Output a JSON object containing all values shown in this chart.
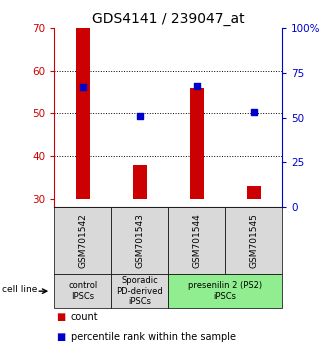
{
  "title": "GDS4141 / 239047_at",
  "samples": [
    "GSM701542",
    "GSM701543",
    "GSM701544",
    "GSM701545"
  ],
  "bar_values": [
    70,
    38,
    56,
    33
  ],
  "bar_base": 30,
  "percentile_values": [
    67,
    51,
    68,
    53
  ],
  "bar_color": "#cc0000",
  "percentile_color": "#0000cc",
  "ylim_left": [
    28,
    70
  ],
  "ylim_right": [
    0,
    100
  ],
  "yticks_left": [
    30,
    40,
    50,
    60,
    70
  ],
  "yticks_right": [
    0,
    25,
    50,
    75,
    100
  ],
  "ytick_labels_right": [
    "0",
    "25",
    "50",
    "75",
    "100%"
  ],
  "grid_values": [
    40,
    50,
    60
  ],
  "groups": [
    {
      "label": "control\nIPSCs",
      "samples": [
        0
      ],
      "color": "#d9d9d9"
    },
    {
      "label": "Sporadic\nPD-derived\niPSCs",
      "samples": [
        1
      ],
      "color": "#d9d9d9"
    },
    {
      "label": "presenilin 2 (PS2)\niPSCs",
      "samples": [
        2,
        3
      ],
      "color": "#90ee90"
    }
  ],
  "cell_line_label": "cell line",
  "legend_items": [
    {
      "label": "count",
      "color": "#cc0000"
    },
    {
      "label": "percentile rank within the sample",
      "color": "#0000cc"
    }
  ],
  "bar_width": 0.25,
  "background_color": "#ffffff",
  "title_fontsize": 10,
  "tick_fontsize": 7.5,
  "sample_fontsize": 6.5,
  "group_fontsize": 6,
  "legend_fontsize": 7
}
